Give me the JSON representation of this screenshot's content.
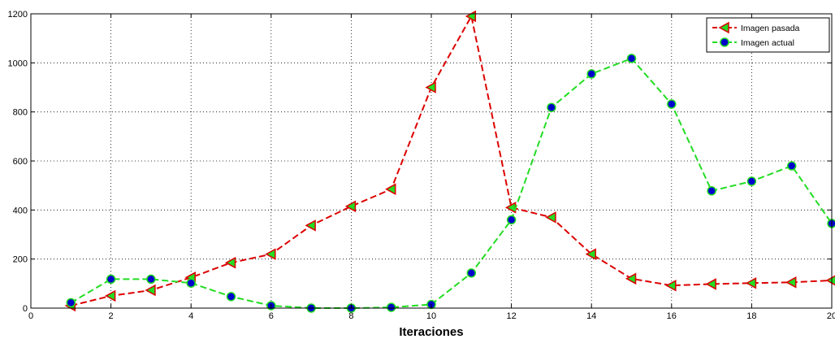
{
  "chart_data": {
    "type": "line",
    "title": "",
    "xlabel": "Iteraciones",
    "ylabel": "",
    "xlim": [
      0,
      20
    ],
    "ylim": [
      0,
      1200
    ],
    "xticks": [
      0,
      2,
      4,
      6,
      8,
      10,
      12,
      14,
      16,
      18,
      20
    ],
    "yticks": [
      0,
      200,
      400,
      600,
      800,
      1000,
      1200
    ],
    "grid": true,
    "legend_position": "top-right",
    "series": [
      {
        "name": "Imagen pasada",
        "line_color": "#dd0000",
        "marker_fill": "#22dd22",
        "marker_edge": "#dd0000",
        "marker": "triangle-left",
        "line_style": "dashed",
        "x": [
          1,
          2,
          3,
          4,
          5,
          6,
          7,
          8,
          9,
          10,
          11,
          12,
          13,
          14,
          15,
          16,
          17,
          18,
          19,
          20
        ],
        "values": [
          10,
          50,
          73,
          125,
          185,
          220,
          337,
          415,
          485,
          900,
          1190,
          410,
          370,
          220,
          120,
          92,
          98,
          102,
          105,
          113
        ]
      },
      {
        "name": "Imagen actual",
        "line_color": "#22dd22",
        "marker_fill": "#0000cc",
        "marker_edge": "#22dd22",
        "marker": "circle",
        "line_style": "dashed",
        "x": [
          1,
          2,
          3,
          4,
          5,
          6,
          7,
          8,
          9,
          10,
          11,
          12,
          13,
          14,
          15,
          16,
          17,
          18,
          19,
          20
        ],
        "values": [
          22,
          118,
          118,
          102,
          47,
          10,
          0,
          0,
          3,
          15,
          143,
          360,
          818,
          955,
          1018,
          832,
          478,
          517,
          580,
          345
        ]
      }
    ]
  }
}
